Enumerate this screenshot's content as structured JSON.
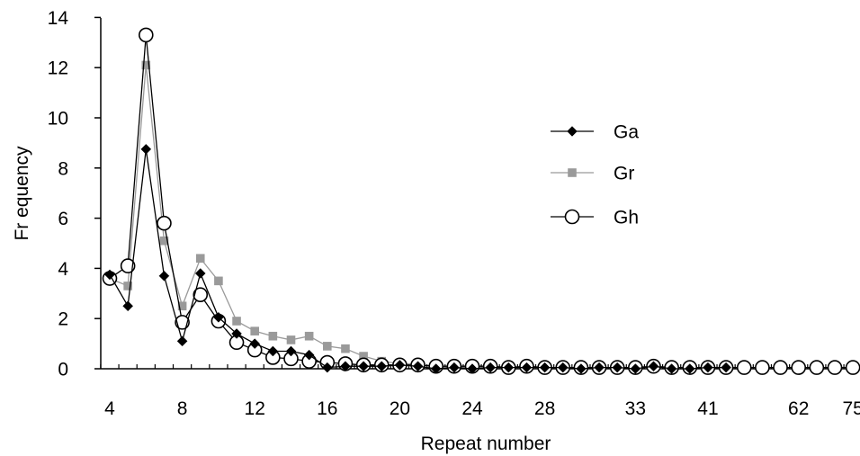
{
  "chart_data": {
    "type": "line",
    "xlabel": "Repeat number",
    "ylabel": "Fr equency",
    "ylim": [
      0,
      14
    ],
    "y_ticks": [
      "0",
      "2",
      "4",
      "6",
      "8",
      "10",
      "12",
      "14"
    ],
    "x_tick_labels": [
      "4",
      "8",
      "12",
      "16",
      "20",
      "24",
      "28",
      "33",
      "41",
      "62",
      "75"
    ],
    "legend_position": "right",
    "grid": false,
    "colors": {
      "Ga": "#000000",
      "Gr": "#9a9a9a",
      "Gh": "#000000"
    },
    "markers": {
      "Ga": "diamond",
      "Gr": "square",
      "Gh": "open-circle"
    },
    "series": [
      {
        "name": "Ga",
        "points": [
          [
            "4",
            3.75
          ],
          [
            "5",
            2.5
          ],
          [
            "6",
            8.75
          ],
          [
            "7",
            3.7
          ],
          [
            "8",
            1.1
          ],
          [
            "9",
            3.8
          ],
          [
            "10",
            2.05
          ],
          [
            "11",
            1.4
          ],
          [
            "12",
            1.0
          ],
          [
            "13",
            0.7
          ],
          [
            "14",
            0.7
          ],
          [
            "15",
            0.55
          ],
          [
            "16",
            0.05
          ],
          [
            "17",
            0.1
          ],
          [
            "18",
            0.1
          ],
          [
            "19",
            0.1
          ],
          [
            "20",
            0.15
          ],
          [
            "21",
            0.1
          ],
          [
            "22",
            0.0
          ],
          [
            "23",
            0.05
          ],
          [
            "24",
            0.0
          ],
          [
            "25",
            0.05
          ],
          [
            "26",
            0.05
          ],
          [
            "27",
            0.05
          ],
          [
            "28",
            0.05
          ],
          [
            "29",
            0.05
          ],
          [
            "30",
            0.0
          ],
          [
            "31",
            0.05
          ],
          [
            "32",
            0.05
          ],
          [
            "33",
            0.0
          ],
          [
            "35",
            0.1
          ],
          [
            "37",
            0.0
          ],
          [
            "39",
            0.0
          ],
          [
            "41",
            0.05
          ],
          [
            "43",
            0.05
          ]
        ]
      },
      {
        "name": "Gr",
        "points": [
          [
            "4",
            3.6
          ],
          [
            "5",
            3.3
          ],
          [
            "6",
            12.1
          ],
          [
            "7",
            5.1
          ],
          [
            "8",
            2.5
          ],
          [
            "9",
            4.4
          ],
          [
            "10",
            3.5
          ],
          [
            "11",
            1.9
          ],
          [
            "12",
            1.5
          ],
          [
            "13",
            1.3
          ],
          [
            "14",
            1.15
          ],
          [
            "15",
            1.3
          ],
          [
            "16",
            0.9
          ],
          [
            "17",
            0.8
          ],
          [
            "18",
            0.5
          ],
          [
            "19",
            0.3
          ],
          [
            "20",
            0.2
          ],
          [
            "21",
            0.2
          ],
          [
            "22",
            0.05
          ],
          [
            "23",
            0.05
          ],
          [
            "24",
            0.05
          ],
          [
            "25",
            0.05
          ],
          [
            "26",
            0.05
          ],
          [
            "27",
            0.05
          ],
          [
            "28",
            0.05
          ],
          [
            "29",
            0.05
          ]
        ]
      },
      {
        "name": "Gh",
        "points": [
          [
            "4",
            3.6
          ],
          [
            "5",
            4.1
          ],
          [
            "6",
            13.3
          ],
          [
            "7",
            5.8
          ],
          [
            "8",
            1.85
          ],
          [
            "9",
            2.95
          ],
          [
            "10",
            1.9
          ],
          [
            "11",
            1.05
          ],
          [
            "12",
            0.75
          ],
          [
            "13",
            0.45
          ],
          [
            "14",
            0.4
          ],
          [
            "15",
            0.3
          ],
          [
            "16",
            0.25
          ],
          [
            "17",
            0.2
          ],
          [
            "18",
            0.15
          ],
          [
            "19",
            0.15
          ],
          [
            "20",
            0.15
          ],
          [
            "21",
            0.15
          ],
          [
            "22",
            0.1
          ],
          [
            "23",
            0.1
          ],
          [
            "24",
            0.1
          ],
          [
            "25",
            0.1
          ],
          [
            "26",
            0.05
          ],
          [
            "27",
            0.1
          ],
          [
            "28",
            0.05
          ],
          [
            "29",
            0.05
          ],
          [
            "30",
            0.05
          ],
          [
            "31",
            0.05
          ],
          [
            "32",
            0.05
          ],
          [
            "33",
            0.05
          ],
          [
            "35",
            0.1
          ],
          [
            "37",
            0.05
          ],
          [
            "39",
            0.05
          ],
          [
            "41",
            0.05
          ],
          [
            "43",
            0.05
          ],
          [
            "47",
            0.05
          ],
          [
            "52",
            0.05
          ],
          [
            "57",
            0.05
          ],
          [
            "62",
            0.05
          ],
          [
            "66",
            0.05
          ],
          [
            "70",
            0.05
          ],
          [
            "75",
            0.05
          ]
        ]
      }
    ]
  }
}
